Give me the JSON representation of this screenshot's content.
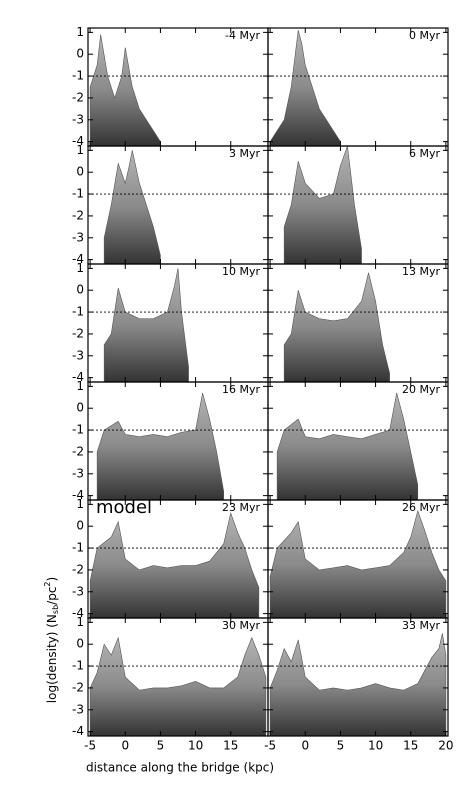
{
  "figure": {
    "xlabel": "distance along the bridge (kpc)",
    "ylabel_parts": [
      "log(density) (N",
      "sb",
      "/pc",
      "2",
      ")"
    ],
    "annotation": "model"
  },
  "chart_data": [
    {
      "type": "area",
      "title": "-4 Myr",
      "xlim": [
        -5.3,
        20.3
      ],
      "ylim": [
        -4.2,
        1.2
      ],
      "xticks": [
        -5,
        0,
        5,
        10,
        15
      ],
      "yticks": [
        1,
        0,
        -1,
        -2,
        -3,
        -4
      ],
      "hline": -1,
      "x": [
        -5,
        -4,
        -3.5,
        -2.5,
        -1.5,
        -0.5,
        0,
        1,
        2,
        3,
        4,
        5
      ],
      "values": [
        -1.5,
        -0.5,
        0.9,
        -1,
        -2,
        -1,
        0.3,
        -1.5,
        -2.5,
        -3,
        -3.5,
        -4
      ]
    },
    {
      "type": "area",
      "title": "0 Myr",
      "xlim": [
        -5.3,
        20.3
      ],
      "ylim": [
        -4.2,
        1.2
      ],
      "xticks": [
        -5,
        0,
        5,
        10,
        15,
        20
      ],
      "yticks": [
        1,
        0,
        -1,
        -2,
        -3,
        -4
      ],
      "hline": -1,
      "x": [
        -5,
        -4,
        -3,
        -2,
        -1,
        -0.5,
        0,
        1,
        2,
        3,
        4,
        5
      ],
      "values": [
        -4,
        -3.5,
        -3,
        -1.5,
        1.1,
        0.5,
        -0.5,
        -1.5,
        -2.5,
        -3,
        -3.5,
        -4
      ]
    },
    {
      "type": "area",
      "title": "3 Myr",
      "xlim": [
        -5.3,
        20.3
      ],
      "ylim": [
        -4.2,
        1.2
      ],
      "xticks": [
        -5,
        0,
        5,
        10,
        15
      ],
      "yticks": [
        1,
        0,
        -1,
        -2,
        -3,
        -4
      ],
      "hline": -1,
      "x": [
        -3,
        -2,
        -1,
        0,
        0.5,
        1,
        2,
        3,
        4,
        5
      ],
      "values": [
        -3,
        -1.5,
        0.4,
        -0.5,
        0.2,
        1,
        -0.5,
        -1.5,
        -2.5,
        -3.8
      ]
    },
    {
      "type": "area",
      "title": "6 Myr",
      "xlim": [
        -5.3,
        20.3
      ],
      "ylim": [
        -4.2,
        1.2
      ],
      "xticks": [
        -5,
        0,
        5,
        10,
        15,
        20
      ],
      "yticks": [
        1,
        0,
        -1,
        -2,
        -3,
        -4
      ],
      "hline": -1,
      "x": [
        -3,
        -2,
        -1,
        0,
        2,
        4,
        5,
        6,
        7,
        8
      ],
      "values": [
        -2.5,
        -1.5,
        0.5,
        -0.5,
        -1.2,
        -1,
        0.3,
        1.2,
        -1.5,
        -3.5
      ]
    },
    {
      "type": "area",
      "title": "10 Myr",
      "xlim": [
        -5.3,
        20.3
      ],
      "ylim": [
        -4.2,
        1.2
      ],
      "xticks": [
        -5,
        0,
        5,
        10,
        15
      ],
      "yticks": [
        1,
        0,
        -1,
        -2,
        -3,
        -4
      ],
      "hline": -1,
      "x": [
        -3,
        -2,
        -1,
        0,
        2,
        4,
        6,
        7,
        7.5,
        8,
        9
      ],
      "values": [
        -2.5,
        -2,
        0.1,
        -1,
        -1.3,
        -1.3,
        -1,
        0.2,
        1,
        -1,
        -3.5
      ]
    },
    {
      "type": "area",
      "title": "13 Myr",
      "xlim": [
        -5.3,
        20.3
      ],
      "ylim": [
        -4.2,
        1.2
      ],
      "xticks": [
        -5,
        0,
        5,
        10,
        15,
        20
      ],
      "yticks": [
        1,
        0,
        -1,
        -2,
        -3,
        -4
      ],
      "hline": -1,
      "x": [
        -3,
        -2,
        -1,
        0,
        2,
        4,
        6,
        8,
        9,
        10,
        11,
        12
      ],
      "values": [
        -2.5,
        -2,
        0,
        -1,
        -1.3,
        -1.4,
        -1.3,
        -0.5,
        0.8,
        -0.5,
        -2.5,
        -3.8
      ]
    },
    {
      "type": "area",
      "title": "16 Myr",
      "xlim": [
        -5.3,
        20.3
      ],
      "ylim": [
        -4.2,
        1.2
      ],
      "xticks": [
        -5,
        0,
        5,
        10,
        15
      ],
      "yticks": [
        1,
        0,
        -1,
        -2,
        -3,
        -4
      ],
      "hline": -1,
      "x": [
        -4,
        -3,
        -1,
        0,
        2,
        4,
        6,
        8,
        10,
        11,
        12,
        13,
        14
      ],
      "values": [
        -2,
        -1,
        -0.6,
        -1.2,
        -1.3,
        -1.2,
        -1.3,
        -1.1,
        -1,
        0.7,
        -0.5,
        -2,
        -3.8
      ]
    },
    {
      "type": "area",
      "title": "20 Myr",
      "xlim": [
        -5.3,
        20.3
      ],
      "ylim": [
        -4.2,
        1.2
      ],
      "xticks": [
        -5,
        0,
        5,
        10,
        15,
        20
      ],
      "yticks": [
        1,
        0,
        -1,
        -2,
        -3,
        -4
      ],
      "hline": -1,
      "x": [
        -4,
        -3,
        -1,
        0,
        2,
        4,
        6,
        8,
        10,
        12,
        13,
        14,
        15,
        16
      ],
      "values": [
        -2,
        -1,
        -0.5,
        -1.3,
        -1.4,
        -1.2,
        -1.3,
        -1.4,
        -1.2,
        -1,
        0.7,
        -0.5,
        -2,
        -3.5
      ]
    },
    {
      "type": "area",
      "title": "23 Myr",
      "xlim": [
        -5.3,
        20.3
      ],
      "ylim": [
        -4.2,
        1.2
      ],
      "xticks": [
        -5,
        0,
        5,
        10,
        15
      ],
      "yticks": [
        1,
        0,
        -1,
        -2,
        -3,
        -4
      ],
      "hline": -1,
      "x": [
        -5,
        -4,
        -2,
        -1,
        0,
        2,
        4,
        6,
        8,
        10,
        12,
        14,
        15,
        16,
        17,
        18,
        19
      ],
      "values": [
        -2.5,
        -1,
        -0.5,
        0.2,
        -1.5,
        -2,
        -1.8,
        -1.9,
        -1.8,
        -1.8,
        -1.6,
        -0.8,
        0.6,
        -0.3,
        -1,
        -2,
        -2.8
      ]
    },
    {
      "type": "area",
      "title": "26 Myr",
      "xlim": [
        -5.3,
        20.3
      ],
      "ylim": [
        -4.2,
        1.2
      ],
      "xticks": [
        -5,
        0,
        5,
        10,
        15,
        20
      ],
      "yticks": [
        1,
        0,
        -1,
        -2,
        -3,
        -4
      ],
      "hline": -1,
      "x": [
        -5,
        -4,
        -2,
        -1,
        0,
        2,
        4,
        6,
        8,
        10,
        12,
        14,
        15,
        16,
        17,
        18,
        19,
        20
      ],
      "values": [
        -2.3,
        -1,
        -0.3,
        0.2,
        -1.5,
        -2,
        -1.9,
        -1.8,
        -2,
        -1.9,
        -1.8,
        -1.2,
        -0.5,
        0.7,
        -0.2,
        -1.2,
        -2,
        -2.5
      ]
    },
    {
      "type": "area",
      "title": "30 Myr",
      "xlim": [
        -5.3,
        20.3
      ],
      "ylim": [
        -4.2,
        1.2
      ],
      "xticks": [
        -5,
        0,
        5,
        10,
        15
      ],
      "yticks": [
        1,
        0,
        -1,
        -2,
        -3,
        -4
      ],
      "hline": -1,
      "x": [
        -5,
        -4,
        -3,
        -2,
        -1,
        0,
        2,
        4,
        6,
        8,
        10,
        12,
        14,
        16,
        17,
        18,
        19,
        20
      ],
      "values": [
        -2,
        -1.3,
        0,
        -0.5,
        0.3,
        -1.5,
        -2.1,
        -2,
        -2,
        -1.9,
        -1.7,
        -2,
        -2,
        -1.5,
        -0.5,
        0.3,
        -0.5,
        -1.5
      ]
    },
    {
      "type": "area",
      "title": "33 Myr",
      "xlim": [
        -5.3,
        20.3
      ],
      "ylim": [
        -4.2,
        1.2
      ],
      "xticks": [
        -5,
        0,
        5,
        10,
        15,
        20
      ],
      "yticks": [
        1,
        0,
        -1,
        -2,
        -3,
        -4
      ],
      "hline": -1,
      "x": [
        -5,
        -4,
        -3,
        -2,
        -1,
        0,
        2,
        4,
        6,
        8,
        10,
        12,
        14,
        16,
        17,
        18,
        19,
        19.5,
        20
      ],
      "values": [
        -2,
        -1.2,
        -0.2,
        -0.8,
        0.2,
        -1.5,
        -2.1,
        -2,
        -2.1,
        -2,
        -1.8,
        -2,
        -2.1,
        -1.8,
        -1.2,
        -0.6,
        -0.2,
        0.5,
        -0.5
      ]
    }
  ]
}
